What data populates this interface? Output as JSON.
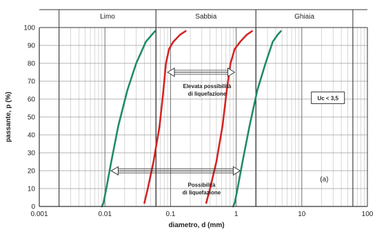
{
  "chart_data": {
    "type": "line",
    "xscale": "log",
    "xlim": [
      0.001,
      100
    ],
    "ylim": [
      0,
      100
    ],
    "grid": true,
    "xlabel": "diametro, d (mm)",
    "ylabel": "passante, p (%)",
    "x_ticks": [
      "0.001",
      "0.01",
      "0.1",
      "1",
      "10",
      "100"
    ],
    "y_ticks": [
      "0",
      "10",
      "20",
      "30",
      "40",
      "50",
      "60",
      "70",
      "80",
      "90",
      "100"
    ],
    "soil_bands": [
      {
        "label": "Limo",
        "from": 0.002,
        "to": 0.06
      },
      {
        "label": "Sabbia",
        "from": 0.06,
        "to": 2
      },
      {
        "label": "Ghiaia",
        "from": 2,
        "to": 60
      }
    ],
    "series": [
      {
        "role": "possibili-lower",
        "color": "#1f8a6a",
        "x": [
          0.009,
          0.0095,
          0.0105,
          0.0125,
          0.016,
          0.022,
          0.03,
          0.042,
          0.052,
          0.058
        ],
        "y": [
          0,
          2,
          10,
          25,
          45,
          65,
          80,
          92,
          96,
          98
        ]
      },
      {
        "role": "elevata-lower",
        "color": "#d42424",
        "x": [
          0.04,
          0.045,
          0.055,
          0.068,
          0.078,
          0.085,
          0.095,
          0.11,
          0.14,
          0.17
        ],
        "y": [
          2,
          10,
          25,
          45,
          65,
          80,
          88,
          92,
          96,
          98
        ]
      },
      {
        "role": "elevata-upper",
        "color": "#d42424",
        "x": [
          0.35,
          0.4,
          0.5,
          0.62,
          0.72,
          0.82,
          0.95,
          1.15,
          1.45,
          1.75
        ],
        "y": [
          2,
          10,
          25,
          45,
          65,
          80,
          88,
          92,
          96,
          98
        ]
      },
      {
        "role": "possibili-upper",
        "color": "#1f8a6a",
        "x": [
          0.9,
          0.95,
          1.05,
          1.25,
          1.6,
          2.1,
          2.8,
          3.6,
          4.3,
          4.8
        ],
        "y": [
          0,
          2,
          10,
          25,
          45,
          65,
          80,
          92,
          96,
          98
        ]
      }
    ],
    "annotations": [
      {
        "name": "elevata",
        "lines": [
          "Elevata possibilità",
          "di liquefazione"
        ],
        "arrow_from": 0.09,
        "arrow_to": 0.95,
        "arrow_y": 75
      },
      {
        "name": "possibilita",
        "lines": [
          "Possibilità",
          "di liquefazione"
        ],
        "arrow_from": 0.0125,
        "arrow_to": 1.15,
        "arrow_y": 18
      },
      {
        "name": "uc",
        "text": "Uc < 3,5"
      },
      {
        "name": "panel",
        "text": "(a)"
      }
    ]
  }
}
